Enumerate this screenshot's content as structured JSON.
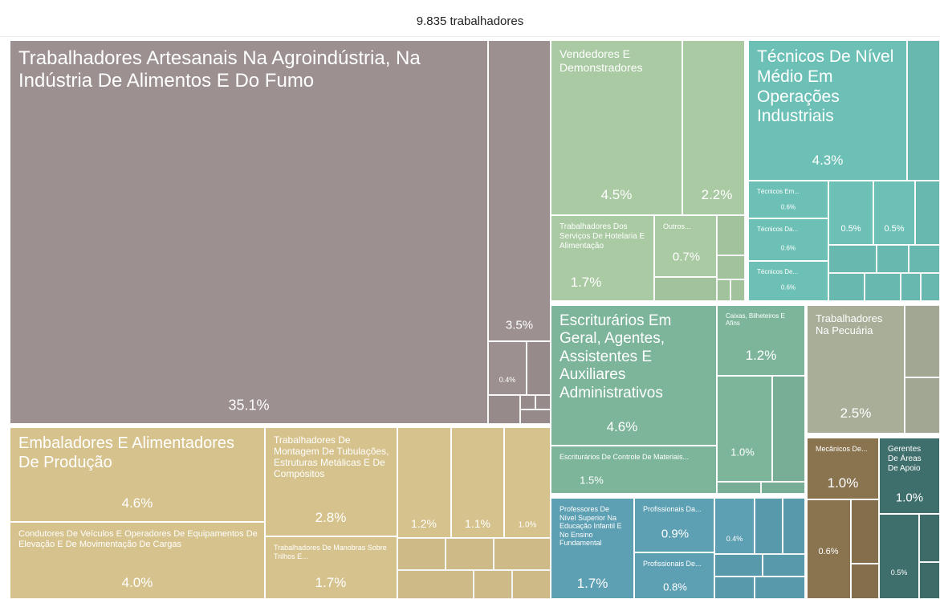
{
  "chart_data": {
    "type": "treemap",
    "title": "9.835 trabalhadores",
    "items": [
      {
        "name": "Trabalhadores Artesanais Na Agroindústria, Na Indústria De Alimentos E Do Fumo",
        "value": 35.1,
        "value_label": "35.1%",
        "color": "#9c9090"
      },
      {
        "value": 3.5,
        "value_label": "3.5%",
        "color": "#9c9090"
      },
      {
        "value": 0.4,
        "value_label": "0.4%",
        "color": "#9c9090"
      },
      {
        "name": "Embaladores E Alimentadores De Produção",
        "value": 4.6,
        "value_label": "4.6%",
        "color": "#d6c28c"
      },
      {
        "name": "Condutores De Veículos E Operadores De Equipamentos De Elevação E De Movimentação De Cargas",
        "value": 4.0,
        "value_label": "4.0%",
        "color": "#d6c28c"
      },
      {
        "name": "Trabalhadores De Montagem De Tubulações, Estruturas Metálicas E De Compósitos",
        "value": 2.8,
        "value_label": "2.8%",
        "color": "#d6c28c"
      },
      {
        "name": "Trabalhadores De Manobras Sobre Trilhos E...",
        "value": 1.7,
        "value_label": "1.7%",
        "color": "#d6c28c"
      },
      {
        "value": 1.2,
        "value_label": "1.2%",
        "color": "#d6c28c"
      },
      {
        "value": 1.1,
        "value_label": "1.1%",
        "color": "#d6c28c"
      },
      {
        "value": 1.0,
        "value_label": "1.0%",
        "color": "#d6c28c"
      },
      {
        "name": "Vendedores E Demonstradores",
        "value": 4.5,
        "value_label": "4.5%",
        "color": "#a9caa2"
      },
      {
        "value": 2.2,
        "value_label": "2.2%",
        "color": "#a9caa2"
      },
      {
        "name": "Trabalhadores Dos Serviços De Hotelaria E Alimentação",
        "value": 1.7,
        "value_label": "1.7%",
        "color": "#a9caa2"
      },
      {
        "name": "Outros...",
        "value": 0.7,
        "value_label": "0.7%",
        "color": "#a9caa2"
      },
      {
        "name": "Técnicos De Nível Médio Em Operações Industriais",
        "value": 4.3,
        "value_label": "4.3%",
        "color": "#6dc0b6"
      },
      {
        "name": "Técnicos Em...",
        "value": 0.6,
        "value_label": "0.6%",
        "color": "#6dc0b6"
      },
      {
        "name": "Técnicos Da...",
        "value": 0.6,
        "value_label": "0.6%",
        "color": "#6dc0b6"
      },
      {
        "name": "Técnicos De...",
        "value": 0.6,
        "value_label": "0.6%",
        "color": "#6dc0b6"
      },
      {
        "value": 0.5,
        "value_label": "0.5%",
        "color": "#6dc0b6"
      },
      {
        "value": 0.5,
        "value_label": "0.5%",
        "color": "#6dc0b6"
      },
      {
        "name": "Escriturários Em Geral, Agentes, Assistentes E Auxiliares Administrativos",
        "value": 4.6,
        "value_label": "4.6%",
        "color": "#7db59b"
      },
      {
        "name": "Escriturários De Controle De Materiais...",
        "value": 1.5,
        "value_label": "1.5%",
        "color": "#7db59b"
      },
      {
        "name": "Caixas, Bilheteiros E Afins",
        "value": 1.2,
        "value_label": "1.2%",
        "color": "#7db59b"
      },
      {
        "value": 1.0,
        "value_label": "1.0%",
        "color": "#7db59b"
      },
      {
        "name": "Trabalhadores Na Pecuária",
        "value": 2.5,
        "value_label": "2.5%",
        "color": "#a8ae98"
      },
      {
        "name": "Professores De Nível Superior Na Educação Infantil E No Ensino Fundamental",
        "value": 1.7,
        "value_label": "1.7%",
        "color": "#5d9fb3"
      },
      {
        "name": "Profissionais Da...",
        "value": 0.9,
        "value_label": "0.9%",
        "color": "#5d9fb3"
      },
      {
        "name": "Profissionais De...",
        "value": 0.8,
        "value_label": "0.8%",
        "color": "#5d9fb3"
      },
      {
        "value": 0.4,
        "value_label": "0.4%",
        "color": "#5d9fb3"
      },
      {
        "name": "Mecânicos De...",
        "value": 1.0,
        "value_label": "1.0%",
        "color": "#8a7450"
      },
      {
        "value": 0.6,
        "value_label": "0.6%",
        "color": "#8a7450"
      },
      {
        "name": "Gerentes De Áreas De Apoio",
        "value": 1.0,
        "value_label": "1.0%",
        "color": "#3f6f6c"
      },
      {
        "value": 0.5,
        "value_label": "0.5%",
        "color": "#3f6f6c"
      }
    ]
  }
}
